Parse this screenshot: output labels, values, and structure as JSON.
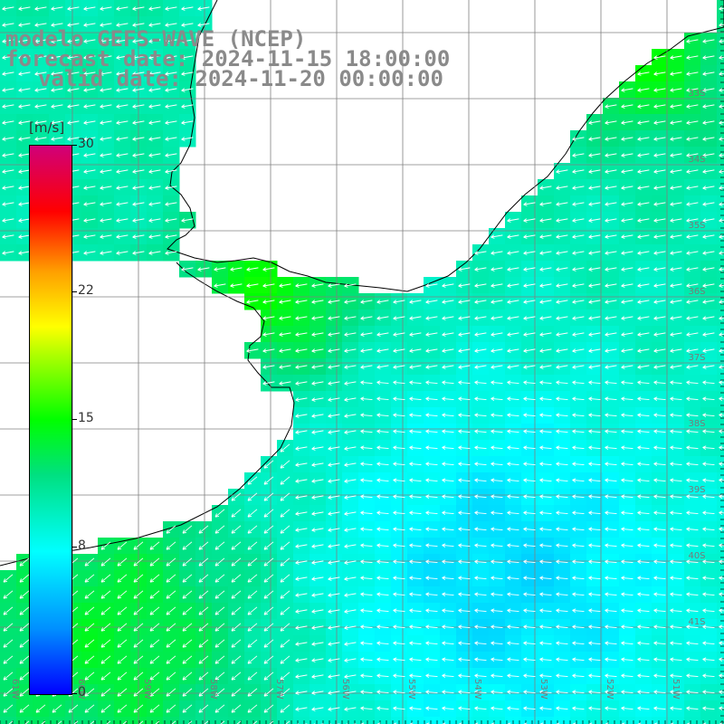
{
  "title": {
    "line1": "modelo GEFS-WAVE (NCEP)",
    "line2": "forecast date: 2024-11-15 18:00:00",
    "line3": "valid date: 2024-11-20 00:00:00"
  },
  "colorbar": {
    "unit": "[m/s]",
    "min": 0,
    "max": 30,
    "ticks": [
      {
        "value": 30,
        "label": "30"
      },
      {
        "value": 22,
        "label": "22"
      },
      {
        "value": 15,
        "label": "15"
      },
      {
        "value": 8,
        "label": "8"
      },
      {
        "value": 0,
        "label": "0"
      }
    ],
    "colors": [
      "#0000ff",
      "#0090ff",
      "#00ffff",
      "#00e080",
      "#00ff00",
      "#b0ff00",
      "#ffff00",
      "#ffa000",
      "#ff0000",
      "#d0007a"
    ]
  },
  "map": {
    "variable": "wind speed and direction",
    "lat_labels": [
      "33S",
      "34S",
      "35S",
      "36S",
      "37S",
      "38S",
      "39S",
      "40S",
      "41S"
    ],
    "lon_labels": [
      "61W",
      "60W",
      "59W",
      "58W",
      "57W",
      "56W",
      "55W",
      "54W",
      "53W",
      "52W",
      "51W"
    ],
    "land_color": "#ffffff",
    "coast_color": "#000000",
    "grid_color": "#808080",
    "arrow_color": "#ffffff"
  }
}
